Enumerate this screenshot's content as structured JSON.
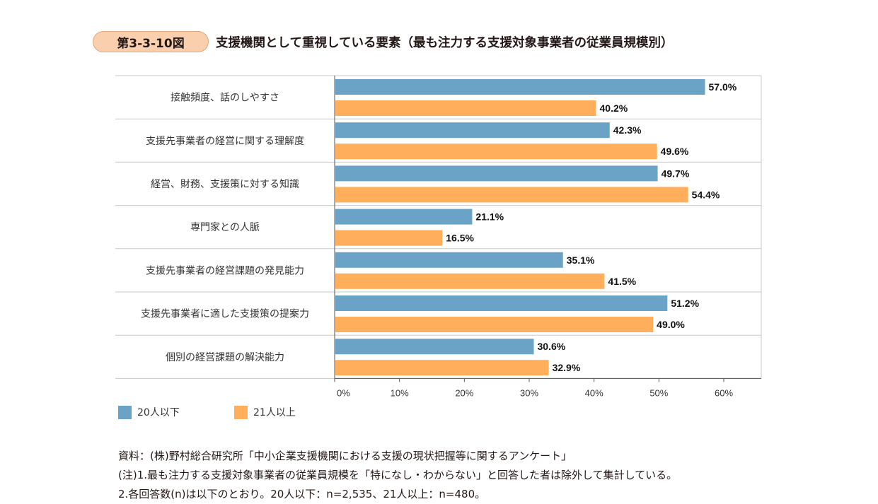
{
  "figure": {
    "number": "第3-3-10図",
    "title": "支援機関として重視している要素（最も注力する支援対象事業者の従業員規模別）"
  },
  "colors": {
    "series1": "#6aa3c5",
    "series2": "#ffaf5c",
    "grid": "#c8c8c8",
    "axis": "#555555"
  },
  "chart_data": {
    "type": "bar",
    "orientation": "horizontal",
    "title": "",
    "xlabel": "",
    "ylabel": "",
    "xlim": [
      0,
      60
    ],
    "x_ticks": [
      "0%",
      "10%",
      "20%",
      "30%",
      "40%",
      "50%",
      "60%"
    ],
    "value_suffix": "%",
    "grid": "row separators",
    "legend_position": "bottom-left",
    "categories": [
      "接触頻度、話のしやすさ",
      "支援先事業者の経営に関する理解度",
      "経営、財務、支援策に対する知識",
      "専門家との人脈",
      "支援先事業者の経営課題の発見能力",
      "支援先事業者に適した支援策の提案力",
      "個別の経営課題の解決能力"
    ],
    "series": [
      {
        "name": "20人以下",
        "values": [
          57.0,
          42.3,
          49.7,
          21.1,
          35.1,
          51.2,
          30.6
        ]
      },
      {
        "name": "21人以上",
        "values": [
          40.2,
          49.6,
          54.4,
          16.5,
          41.5,
          49.0,
          32.9
        ]
      }
    ]
  },
  "notes": {
    "source": "資料：(株)野村総合研究所「中小企業支援機関における支援の現状把握等に関するアンケート」",
    "note1": "(注)1.最も注力する支援対象事業者の従業員規模を「特になし・わからない」と回答した者は除外して集計している。",
    "note2": "2.各回答数(n)は以下のとおり。20人以下：n=2,535、21人以上：n=480。"
  }
}
